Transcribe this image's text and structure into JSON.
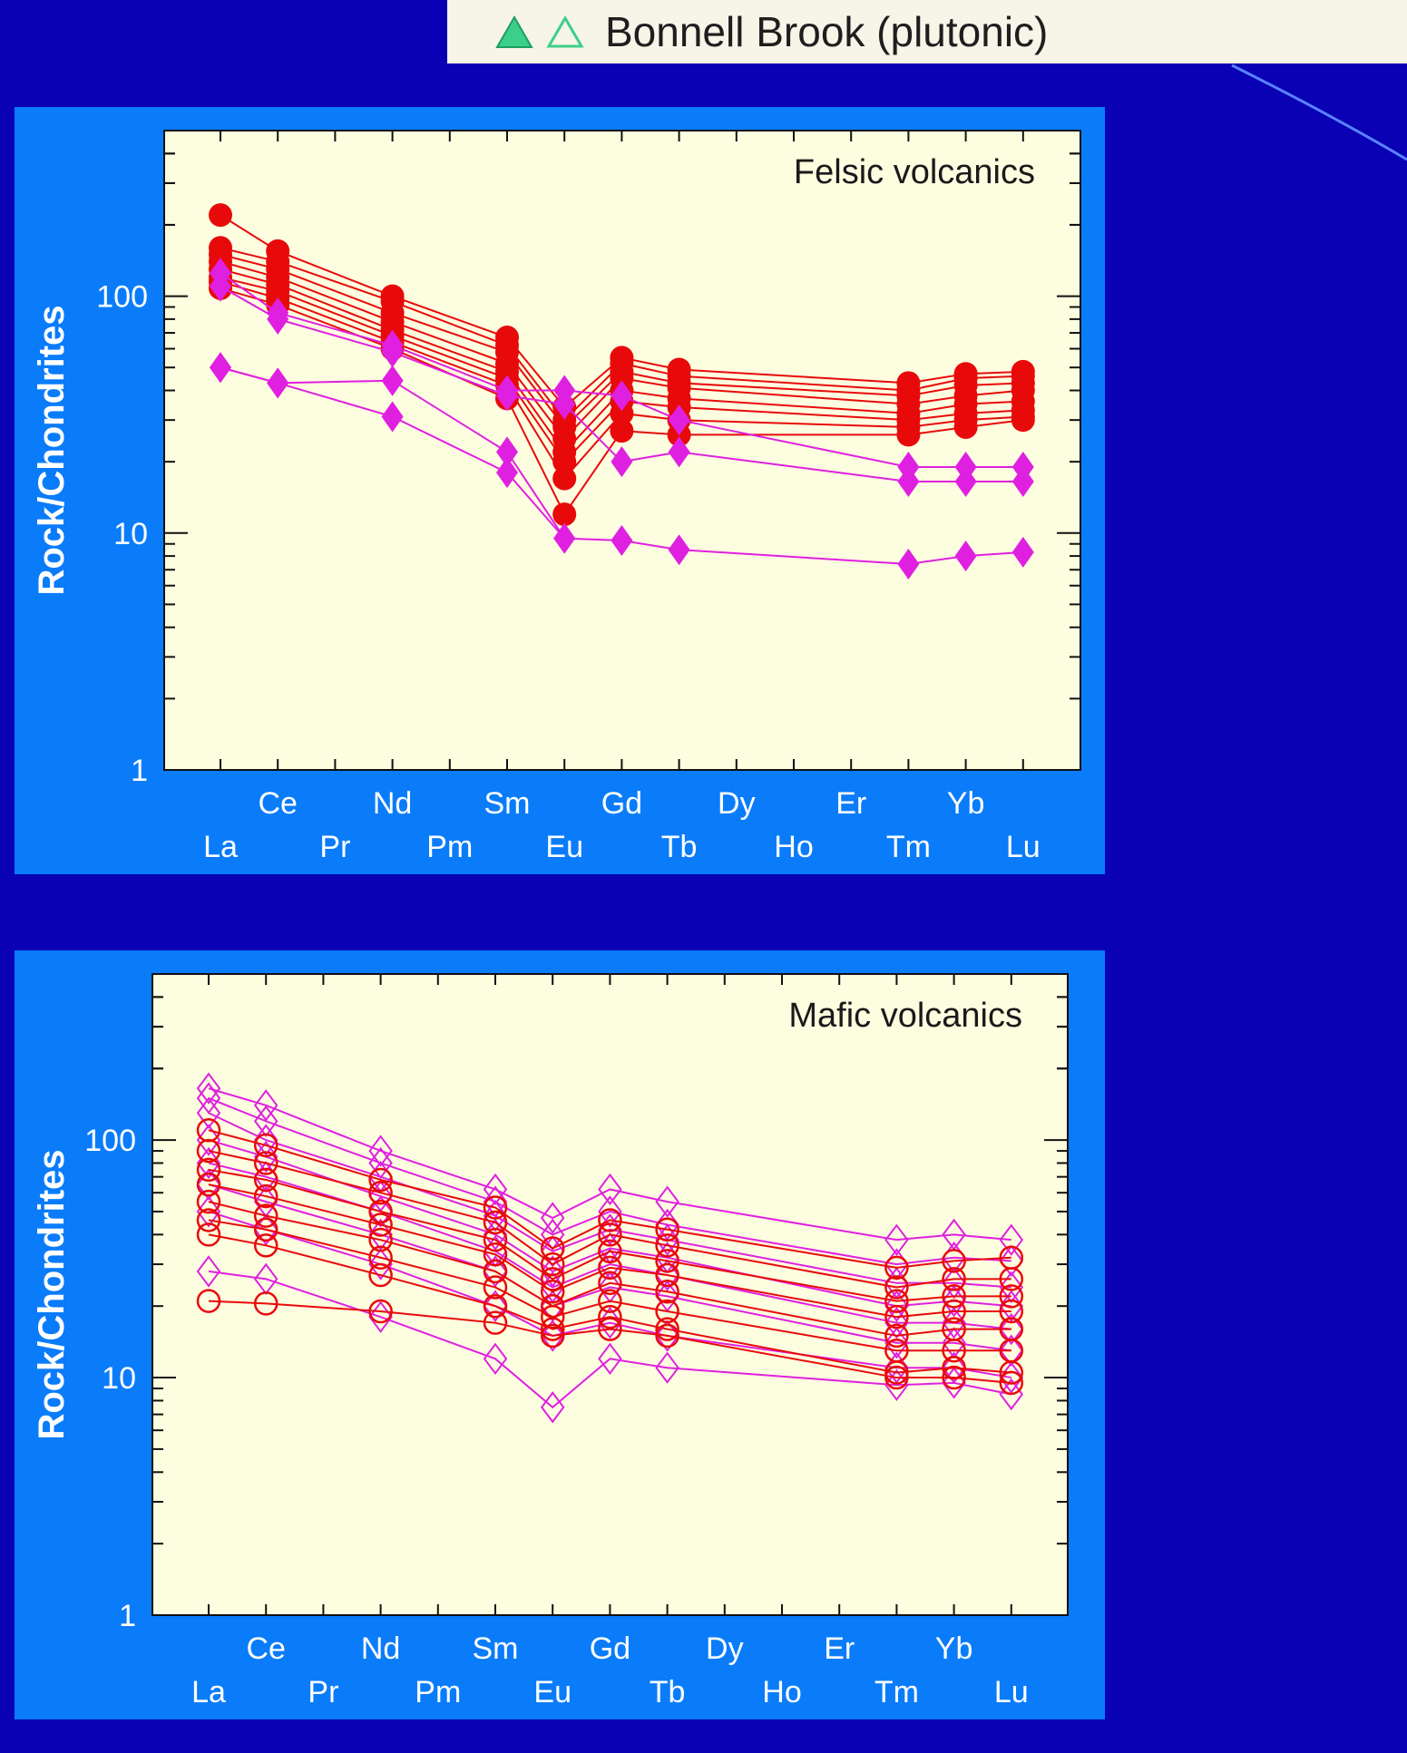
{
  "legend": {
    "label": "Bonnell Brook (plutonic)",
    "filled_marker": "filled-green-triangle-icon",
    "open_marker": "open-green-triangle-icon"
  },
  "colors": {
    "background": "#0a00b4",
    "panel": "#0a7cfa",
    "plot_bg": "#fdfde0",
    "red": "#e80a0a",
    "magenta": "#e020e0",
    "legend_green": "#3ccf8a"
  },
  "chart_data": [
    {
      "type": "line",
      "title": "Felsic volcanics",
      "xlabel": "",
      "ylabel": "Rock/Chondrites",
      "yscale": "log",
      "ylim": [
        1,
        500
      ],
      "y_tick_labels": [
        "1",
        "10",
        "100"
      ],
      "element_labels_top": [
        "Ce",
        "Nd",
        "Sm",
        "Gd",
        "Dy",
        "Er",
        "Yb"
      ],
      "element_labels_bottom": [
        "La",
        "Pr",
        "Pm",
        "Eu",
        "Tb",
        "Ho",
        "Tm",
        "Lu"
      ],
      "elements": [
        "La",
        "Ce",
        "Pr",
        "Nd",
        "Pm",
        "Sm",
        "Eu",
        "Gd",
        "Tb",
        "Dy",
        "Ho",
        "Er",
        "Tm",
        "Yb",
        "Lu"
      ],
      "series": [
        {
          "name": "felsic-red-1",
          "marker": "filled-circle",
          "color": "red",
          "values": {
            "La": 220,
            "Ce": 155,
            "Nd": 100,
            "Sm": 67,
            "Eu": 34,
            "Gd": 55,
            "Tb": 49,
            "Tm": 43,
            "Yb": 47,
            "Lu": 48
          }
        },
        {
          "name": "felsic-red-2",
          "marker": "filled-circle",
          "color": "red",
          "values": {
            "La": 160,
            "Ce": 140,
            "Nd": 95,
            "Sm": 62,
            "Eu": 30,
            "Gd": 52,
            "Tb": 46,
            "Tm": 40,
            "Yb": 45,
            "Lu": 46
          }
        },
        {
          "name": "felsic-red-3",
          "marker": "filled-circle",
          "color": "red",
          "values": {
            "La": 150,
            "Ce": 130,
            "Nd": 85,
            "Sm": 58,
            "Eu": 28,
            "Gd": 48,
            "Tb": 43,
            "Tm": 38,
            "Yb": 42,
            "Lu": 43
          }
        },
        {
          "name": "felsic-red-4",
          "marker": "filled-circle",
          "color": "red",
          "values": {
            "La": 140,
            "Ce": 120,
            "Nd": 78,
            "Sm": 52,
            "Eu": 25,
            "Gd": 45,
            "Tb": 41,
            "Tm": 35,
            "Yb": 38,
            "Lu": 40
          }
        },
        {
          "name": "felsic-red-5",
          "marker": "filled-circle",
          "color": "red",
          "values": {
            "La": 130,
            "Ce": 112,
            "Nd": 72,
            "Sm": 48,
            "Eu": 22,
            "Gd": 40,
            "Tb": 37,
            "Tm": 32,
            "Yb": 35,
            "Lu": 36
          }
        },
        {
          "name": "felsic-red-6",
          "marker": "filled-circle",
          "color": "red",
          "values": {
            "La": 120,
            "Ce": 105,
            "Nd": 68,
            "Sm": 45,
            "Eu": 20,
            "Gd": 36,
            "Tb": 34,
            "Tm": 30,
            "Yb": 32,
            "Lu": 33
          }
        },
        {
          "name": "felsic-red-7",
          "marker": "filled-circle",
          "color": "red",
          "values": {
            "La": 115,
            "Ce": 98,
            "Nd": 64,
            "Sm": 42,
            "Eu": 17,
            "Gd": 32,
            "Tb": 30,
            "Tm": 28,
            "Yb": 30,
            "Lu": 31
          }
        },
        {
          "name": "felsic-red-8",
          "marker": "filled-circle",
          "color": "red",
          "values": {
            "La": 108,
            "Ce": 92,
            "Nd": 60,
            "Sm": 37,
            "Eu": 12,
            "Gd": 27,
            "Tb": 26,
            "Tm": 26,
            "Yb": 28,
            "Lu": 30
          }
        },
        {
          "name": "felsic-magenta-1",
          "marker": "filled-diamond",
          "color": "magenta",
          "values": {
            "La": 125,
            "Ce": 85,
            "Nd": 62,
            "Sm": 40,
            "Eu": 40,
            "Gd": 38,
            "Tb": 30,
            "Tm": 19,
            "Yb": 19,
            "Lu": 19
          }
        },
        {
          "name": "felsic-magenta-2",
          "marker": "filled-diamond",
          "color": "magenta",
          "values": {
            "La": 110,
            "Ce": 80,
            "Nd": 58,
            "Sm": 38,
            "Eu": 35,
            "Gd": 20,
            "Tb": 22,
            "Tm": 16.5,
            "Yb": 16.5,
            "Lu": 16.5
          }
        },
        {
          "name": "felsic-magenta-3",
          "marker": "filled-diamond",
          "color": "magenta",
          "values": {
            "La": 50,
            "Ce": 43,
            "Nd": 44,
            "Sm": 22,
            "Eu": 9.5,
            "Gd": 9.3,
            "Tb": 8.5,
            "Tm": 7.4,
            "Yb": 8,
            "Lu": 8.3
          }
        },
        {
          "name": "felsic-magenta-4",
          "marker": "filled-diamond",
          "color": "magenta",
          "values": {
            "La": 50,
            "Ce": 43,
            "Nd": 31,
            "Sm": 18,
            "Eu": 9.5
          }
        }
      ]
    },
    {
      "type": "line",
      "title": "Mafic volcanics",
      "xlabel": "",
      "ylabel": "Rock/Chondrites",
      "yscale": "log",
      "ylim": [
        1,
        500
      ],
      "y_tick_labels": [
        "1",
        "10",
        "100"
      ],
      "element_labels_top": [
        "Ce",
        "Nd",
        "Sm",
        "Gd",
        "Dy",
        "Er",
        "Yb"
      ],
      "element_labels_bottom": [
        "La",
        "Pr",
        "Pm",
        "Eu",
        "Tb",
        "Ho",
        "Tm",
        "Lu"
      ],
      "elements": [
        "La",
        "Ce",
        "Pr",
        "Nd",
        "Pm",
        "Sm",
        "Eu",
        "Gd",
        "Tb",
        "Dy",
        "Ho",
        "Er",
        "Tm",
        "Yb",
        "Lu"
      ],
      "series": [
        {
          "name": "mafic-magenta-1",
          "marker": "open-diamond",
          "color": "magenta",
          "values": {
            "La": 165,
            "Ce": 140,
            "Nd": 90,
            "Sm": 62,
            "Eu": 47,
            "Gd": 62,
            "Tb": 55,
            "Tm": 38,
            "Yb": 40,
            "Lu": 38
          }
        },
        {
          "name": "mafic-magenta-2",
          "marker": "open-diamond",
          "color": "magenta",
          "values": {
            "La": 150,
            "Ce": 120,
            "Nd": 80,
            "Sm": 55,
            "Eu": 40,
            "Gd": 50,
            "Tb": 44,
            "Tm": 30,
            "Yb": 32,
            "Lu": 31
          }
        },
        {
          "name": "mafic-magenta-3",
          "marker": "open-diamond",
          "color": "magenta",
          "values": {
            "La": 130,
            "Ce": 100,
            "Nd": 70,
            "Sm": 48,
            "Eu": 34,
            "Gd": 42,
            "Tb": 38,
            "Tm": 25,
            "Yb": 25,
            "Lu": 24
          }
        },
        {
          "name": "mafic-magenta-4",
          "marker": "open-diamond",
          "color": "magenta",
          "values": {
            "La": 100,
            "Ce": 85,
            "Nd": 58,
            "Sm": 40,
            "Eu": 28,
            "Gd": 35,
            "Tb": 32,
            "Tm": 20,
            "Yb": 21,
            "Lu": 20
          }
        },
        {
          "name": "mafic-magenta-5",
          "marker": "open-diamond",
          "color": "magenta",
          "values": {
            "La": 80,
            "Ce": 70,
            "Nd": 50,
            "Sm": 34,
            "Eu": 24,
            "Gd": 30,
            "Tb": 27,
            "Tm": 17,
            "Yb": 17,
            "Lu": 16
          }
        },
        {
          "name": "mafic-magenta-6",
          "marker": "open-diamond",
          "color": "magenta",
          "values": {
            "La": 65,
            "Ce": 55,
            "Nd": 40,
            "Sm": 28,
            "Eu": 20,
            "Gd": 24,
            "Tb": 22,
            "Tm": 14,
            "Yb": 14,
            "Lu": 13
          }
        },
        {
          "name": "mafic-magenta-7",
          "marker": "open-diamond",
          "color": "magenta",
          "values": {
            "La": 50,
            "Ce": 42,
            "Nd": 30,
            "Sm": 20,
            "Eu": 15,
            "Gd": 17,
            "Tb": 15,
            "Tm": 11,
            "Yb": 11,
            "Lu": 10
          }
        },
        {
          "name": "mafic-magenta-8",
          "marker": "open-diamond",
          "color": "magenta",
          "values": {
            "La": 28,
            "Ce": 26,
            "Nd": 18,
            "Sm": 12,
            "Eu": 7.5,
            "Gd": 12,
            "Tb": 11,
            "Tm": 9.3,
            "Yb": 9.5,
            "Lu": 8.5
          }
        },
        {
          "name": "mafic-red-1",
          "marker": "open-circle",
          "color": "red",
          "values": {
            "La": 110,
            "Ce": 95,
            "Nd": 68,
            "Sm": 52,
            "Eu": 35,
            "Gd": 46,
            "Tb": 42,
            "Tm": 29,
            "Yb": 31,
            "Lu": 32
          }
        },
        {
          "name": "mafic-red-2",
          "marker": "open-circle",
          "color": "red",
          "values": {
            "La": 90,
            "Ce": 80,
            "Nd": 60,
            "Sm": 45,
            "Eu": 30,
            "Gd": 40,
            "Tb": 36,
            "Tm": 24,
            "Yb": 26,
            "Lu": 26
          }
        },
        {
          "name": "mafic-red-3",
          "marker": "open-circle",
          "color": "red",
          "values": {
            "La": 75,
            "Ce": 68,
            "Nd": 50,
            "Sm": 38,
            "Eu": 26,
            "Gd": 34,
            "Tb": 31,
            "Tm": 21,
            "Yb": 22,
            "Lu": 22
          }
        },
        {
          "name": "mafic-red-4",
          "marker": "open-circle",
          "color": "red",
          "values": {
            "La": 65,
            "Ce": 58,
            "Nd": 44,
            "Sm": 33,
            "Eu": 23,
            "Gd": 29,
            "Tb": 27,
            "Tm": 18,
            "Yb": 19,
            "Lu": 19
          }
        },
        {
          "name": "mafic-red-5",
          "marker": "open-circle",
          "color": "red",
          "values": {
            "La": 55,
            "Ce": 48,
            "Nd": 38,
            "Sm": 28,
            "Eu": 20,
            "Gd": 25,
            "Tb": 23,
            "Tm": 15,
            "Yb": 16,
            "Lu": 16
          }
        },
        {
          "name": "mafic-red-6",
          "marker": "open-circle",
          "color": "red",
          "values": {
            "La": 46,
            "Ce": 42,
            "Nd": 32,
            "Sm": 24,
            "Eu": 18,
            "Gd": 21,
            "Tb": 19,
            "Tm": 13,
            "Yb": 13,
            "Lu": 13
          }
        },
        {
          "name": "mafic-red-7",
          "marker": "open-circle",
          "color": "red",
          "values": {
            "La": 40,
            "Ce": 36,
            "Nd": 27,
            "Sm": 20,
            "Eu": 16,
            "Gd": 18,
            "Tb": 16,
            "Tm": 10.5,
            "Yb": 11,
            "Lu": 10.5
          }
        },
        {
          "name": "mafic-red-8",
          "marker": "open-circle",
          "color": "red",
          "values": {
            "La": 21,
            "Ce": 20.5,
            "Nd": 19,
            "Sm": 17,
            "Eu": 15,
            "Gd": 16,
            "Tb": 15,
            "Tm": 10,
            "Yb": 10,
            "Lu": 9.5
          }
        }
      ]
    }
  ]
}
